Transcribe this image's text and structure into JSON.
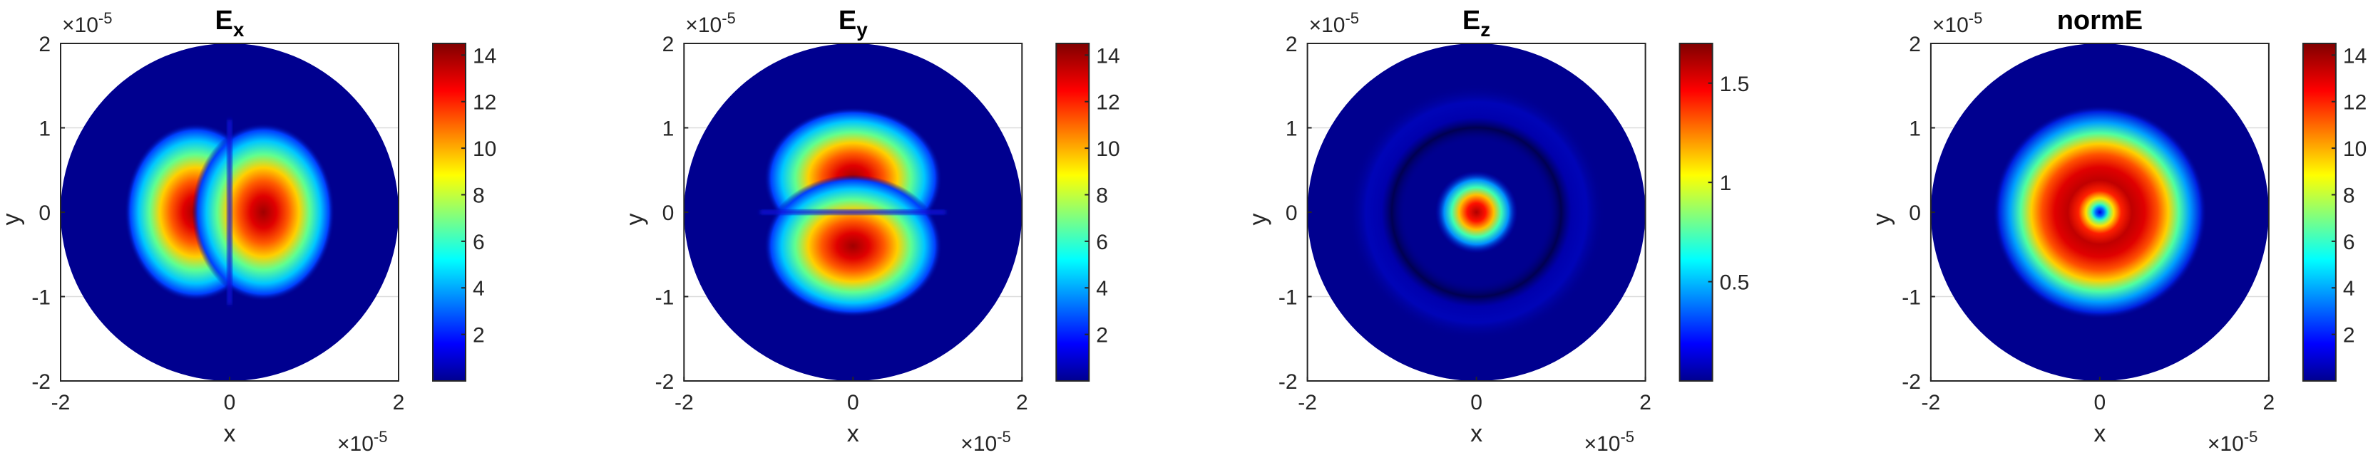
{
  "figure": {
    "exponent_base": "×10",
    "exponent_power": "-5"
  },
  "colors": {
    "axis": "#262626",
    "grid": "#dcdcdc",
    "colormap": "jet"
  },
  "chart_data": [
    {
      "type": "heatmap",
      "title_main": "E",
      "title_sub": "x",
      "xlabel": "x",
      "ylabel": "y",
      "xlim": [
        -2,
        2
      ],
      "ylim": [
        -2,
        2
      ],
      "xticks": [
        "-2",
        "0",
        "2"
      ],
      "yticks": [
        "2",
        "1",
        "0",
        "-1",
        "-2"
      ],
      "domain": "disk radius 2",
      "pattern": "two-lobe, lobes along x (x-polarized component)",
      "colorbar": {
        "min": 0,
        "max": 14.5,
        "ticks": [
          "14",
          "12",
          "10",
          "8",
          "6",
          "4",
          "2"
        ]
      },
      "grid": true
    },
    {
      "type": "heatmap",
      "title_main": "E",
      "title_sub": "y",
      "xlabel": "x",
      "ylabel": "y",
      "xlim": [
        -2,
        2
      ],
      "ylim": [
        -2,
        2
      ],
      "xticks": [
        "-2",
        "0",
        "2"
      ],
      "yticks": [
        "2",
        "1",
        "0",
        "-1",
        "-2"
      ],
      "domain": "disk radius 2",
      "pattern": "two-lobe, lobes along y (y-polarized component)",
      "colorbar": {
        "min": 0,
        "max": 14.5,
        "ticks": [
          "14",
          "12",
          "10",
          "8",
          "6",
          "4",
          "2"
        ]
      },
      "grid": true
    },
    {
      "type": "heatmap",
      "title_main": "E",
      "title_sub": "z",
      "xlabel": "x",
      "ylabel": "y",
      "xlim": [
        -2,
        2
      ],
      "ylim": [
        -2,
        2
      ],
      "xticks": [
        "-2",
        "0",
        "2"
      ],
      "yticks": [
        "2",
        "1",
        "0",
        "-1",
        "-2"
      ],
      "domain": "disk radius 2",
      "pattern": "central spot with faint surrounding ring",
      "colorbar": {
        "min": 0,
        "max": 1.7,
        "ticks": [
          "1.5",
          "1",
          "0.5"
        ]
      },
      "grid": true
    },
    {
      "type": "heatmap",
      "title_main": "normE",
      "title_sub": "",
      "xlabel": "x",
      "ylabel": "y",
      "xlim": [
        -2,
        2
      ],
      "ylim": [
        -2,
        2
      ],
      "xticks": [
        "-2",
        "0",
        "2"
      ],
      "yticks": [
        "2",
        "1",
        "0",
        "-1",
        "-2"
      ],
      "domain": "disk radius 2",
      "pattern": "donut ring with small central peak",
      "colorbar": {
        "min": 0,
        "max": 14.5,
        "ticks": [
          "14",
          "12",
          "10",
          "8",
          "6",
          "4",
          "2"
        ]
      },
      "grid": true
    }
  ]
}
